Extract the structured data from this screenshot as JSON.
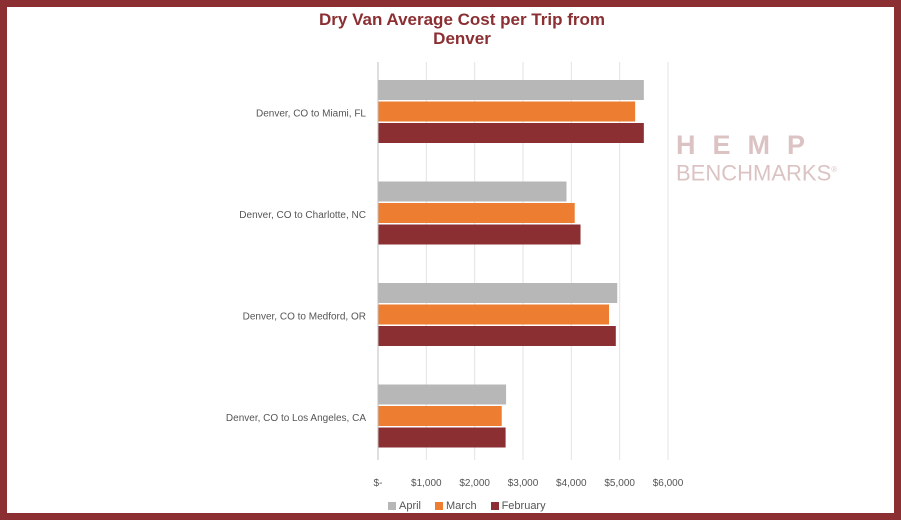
{
  "chart_data": {
    "type": "bar",
    "orientation": "horizontal",
    "title_lines": [
      "Dry Van Average Cost per Trip from",
      "Denver"
    ],
    "categories": [
      "Denver, CO to Miami, FL",
      "Denver, CO to Charlotte, NC",
      "Denver, CO to Medford, OR",
      "Denver, CO to Los Angeles, CA"
    ],
    "series": [
      {
        "name": "April",
        "color": "#b7b7b7",
        "values": [
          5500,
          3900,
          4950,
          2650
        ]
      },
      {
        "name": "March",
        "color": "#ed7d31",
        "values": [
          5320,
          4070,
          4780,
          2560
        ]
      },
      {
        "name": "February",
        "color": "#8b2f32",
        "values": [
          5500,
          4190,
          4920,
          2640
        ]
      }
    ],
    "xlim": [
      0,
      6000
    ],
    "tick_values": [
      0,
      1000,
      2000,
      3000,
      4000,
      5000,
      6000
    ],
    "tick_labels": [
      "$-",
      "$1,000",
      "$2,000",
      "$3,000",
      "$4,000",
      "$5,000",
      "$6,000"
    ],
    "grid": true,
    "legend_position": "bottom"
  },
  "watermark": {
    "line1": "HEMP",
    "line2": "BENCHMARKS",
    "mark": "®"
  },
  "colors": {
    "frame": "#8b2f32",
    "title": "#8b2f32",
    "watermark": "#dcc3c3"
  }
}
